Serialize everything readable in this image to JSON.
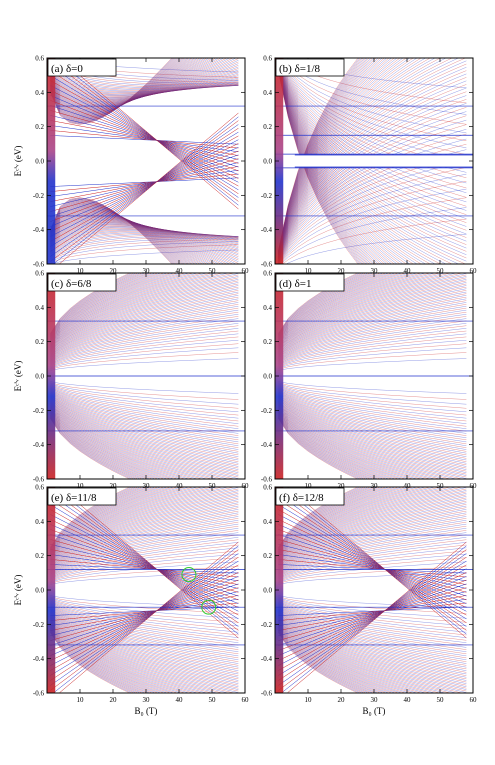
{
  "chart_data": [
    {
      "type": "line",
      "panel_label": "(a) δ=0",
      "delta": "0",
      "variant": "a",
      "xlabel": "",
      "ylabel": "Eᶜ'ᵛ (eV)",
      "xlim": [
        0,
        60
      ],
      "ylim": [
        -0.6,
        0.6
      ],
      "x_ticks": [
        "10",
        "20",
        "30",
        "40",
        "50",
        "60"
      ],
      "y_ticks": [
        "-0.6",
        "-0.4",
        "-0.2",
        "0.0",
        "0.2",
        "0.4",
        "0.6"
      ]
    },
    {
      "type": "line",
      "panel_label": "(b) δ=1/8",
      "delta": "1/8",
      "variant": "b",
      "xlabel": "",
      "ylabel": "",
      "xlim": [
        0,
        60
      ],
      "ylim": [
        -0.6,
        0.6
      ],
      "x_ticks": [
        "10",
        "20",
        "30",
        "40",
        "50",
        "60"
      ],
      "y_ticks": [
        "-0.6",
        "-0.4",
        "-0.2",
        "0.0",
        "0.2",
        "0.4",
        "0.6"
      ]
    },
    {
      "type": "line",
      "panel_label": "(c) δ=6/8",
      "delta": "6/8",
      "variant": "c",
      "xlabel": "",
      "ylabel": "Eᶜ'ᵛ (eV)",
      "xlim": [
        0,
        60
      ],
      "ylim": [
        -0.6,
        0.6
      ],
      "x_ticks": [
        "10",
        "20",
        "30",
        "40",
        "50",
        "60"
      ],
      "y_ticks": [
        "-0.6",
        "-0.4",
        "-0.2",
        "0.0",
        "0.2",
        "0.4",
        "0.6"
      ]
    },
    {
      "type": "line",
      "panel_label": "(d) δ=1",
      "delta": "1",
      "variant": "d",
      "xlabel": "",
      "ylabel": "",
      "xlim": [
        0,
        60
      ],
      "ylim": [
        -0.6,
        0.6
      ],
      "x_ticks": [
        "10",
        "20",
        "30",
        "40",
        "50",
        "60"
      ],
      "y_ticks": [
        "-0.6",
        "-0.4",
        "-0.2",
        "0.0",
        "0.2",
        "0.4",
        "0.6"
      ]
    },
    {
      "type": "line",
      "panel_label": "(e) δ=11/8",
      "delta": "11/8",
      "variant": "e",
      "xlabel": "B₀ (T)",
      "ylabel": "Eᶜ'ᵛ (eV)",
      "xlim": [
        0,
        60
      ],
      "ylim": [
        -0.6,
        0.6
      ],
      "x_ticks": [
        "10",
        "20",
        "30",
        "40",
        "50",
        "60"
      ],
      "y_ticks": [
        "-0.6",
        "-0.4",
        "-0.2",
        "0.0",
        "0.2",
        "0.4",
        "0.6"
      ],
      "annotations": [
        {
          "type": "circle",
          "x": 43,
          "y": 0.09,
          "color": "#33cc33"
        },
        {
          "type": "circle",
          "x": 49,
          "y": -0.1,
          "color": "#33cc33"
        }
      ]
    },
    {
      "type": "line",
      "panel_label": "(f) δ=12/8",
      "delta": "12/8",
      "variant": "f",
      "xlabel": "B₀ (T)",
      "ylabel": "",
      "xlim": [
        0,
        60
      ],
      "ylim": [
        -0.6,
        0.6
      ],
      "x_ticks": [
        "10",
        "20",
        "30",
        "40",
        "50",
        "60"
      ],
      "y_ticks": [
        "-0.6",
        "-0.4",
        "-0.2",
        "0.0",
        "0.2",
        "0.4",
        "0.6"
      ]
    }
  ],
  "colors": {
    "red_level": "#cc2222",
    "blue_level": "#2233cc",
    "annotation": "#33cc33",
    "frame": "#000000"
  }
}
